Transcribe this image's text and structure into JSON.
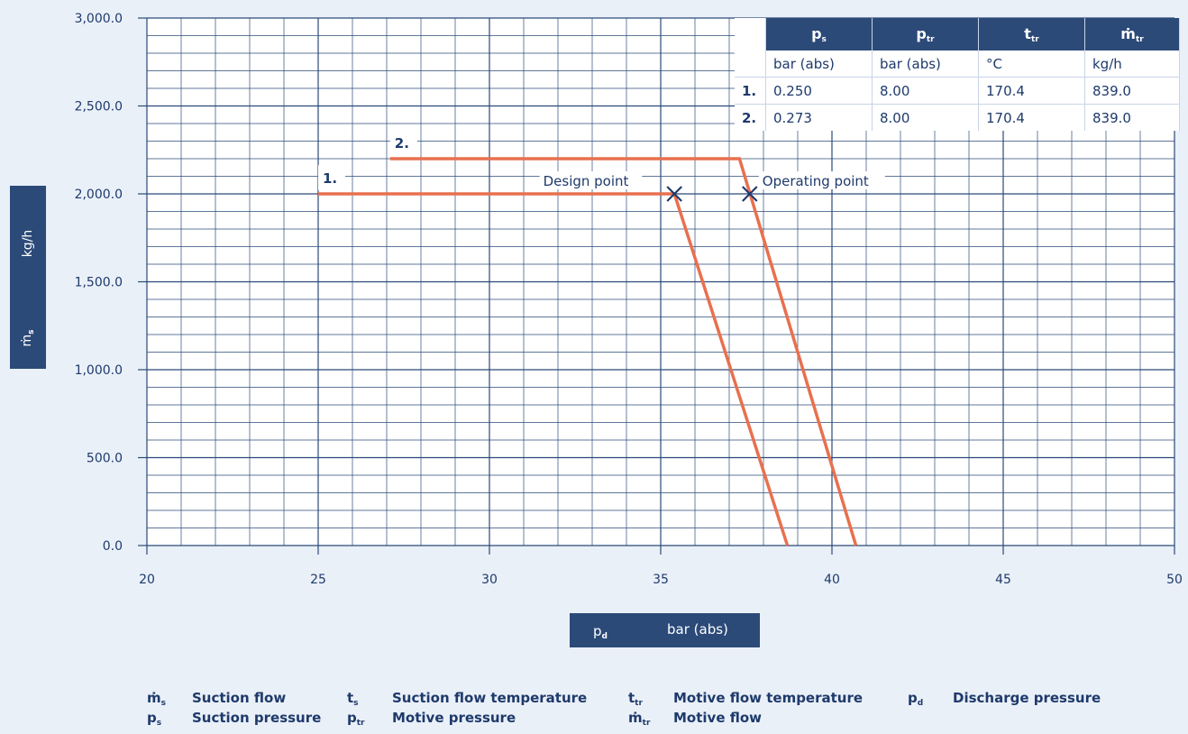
{
  "chart_data": {
    "type": "line",
    "x_range": [
      20,
      50
    ],
    "y_range": [
      0,
      3000
    ],
    "x_ticks": [
      "20",
      "25",
      "30",
      "35",
      "40",
      "45",
      "50"
    ],
    "y_ticks": [
      "0.0",
      "500.0",
      "1,000.0",
      "1,500.0",
      "2,000.0",
      "2,500.0",
      "3,000.0"
    ],
    "grid": true,
    "series": [
      {
        "name": "1.",
        "points": [
          [
            25,
            2000
          ],
          [
            35.4,
            2000
          ],
          [
            38.7,
            0
          ]
        ],
        "color": "#e8704f"
      },
      {
        "name": "2.",
        "points": [
          [
            27.1,
            2200
          ],
          [
            37.3,
            2200
          ],
          [
            40.7,
            0
          ]
        ],
        "color": "#e8704f"
      }
    ],
    "markers": [
      {
        "label": "Design point",
        "x": 35.4,
        "y": 2000
      },
      {
        "label": "Operating point",
        "x": 37.6,
        "y": 2000
      }
    ],
    "xlabel": {
      "symbol": "p",
      "sub": "d",
      "unit": "bar (abs)"
    },
    "ylabel": {
      "symbol": "ṁ",
      "sub": "s",
      "unit": "kg/h"
    }
  },
  "table": {
    "headers": [
      {
        "sym": "p",
        "sub": "s"
      },
      {
        "sym": "p",
        "sub": "tr"
      },
      {
        "sym": "t",
        "sub": "tr"
      },
      {
        "sym": "ṁ",
        "sub": "tr"
      }
    ],
    "units": [
      "bar (abs)",
      "bar (abs)",
      "°C",
      "kg/h"
    ],
    "rows": [
      {
        "label": "1.",
        "values": [
          "0.250",
          "8.00",
          "170.4",
          "839.0"
        ]
      },
      {
        "label": "2.",
        "values": [
          "0.273",
          "8.00",
          "170.4",
          "839.0"
        ]
      }
    ]
  },
  "legend": [
    [
      {
        "sym": "ṁ",
        "sub": "s",
        "text": "Suction flow"
      },
      {
        "sym": "t",
        "sub": "s",
        "text": "Suction flow temperature"
      },
      {
        "sym": "t",
        "sub": "tr",
        "text": "Motive flow temperature"
      },
      {
        "sym": "p",
        "sub": "d",
        "text": "Discharge pressure"
      }
    ],
    [
      {
        "sym": "p",
        "sub": "s",
        "text": "Suction pressure"
      },
      {
        "sym": "p",
        "sub": "tr",
        "text": "Motive pressure"
      },
      {
        "sym": "ṁ",
        "sub": "tr",
        "text": "Motive flow"
      }
    ]
  ]
}
